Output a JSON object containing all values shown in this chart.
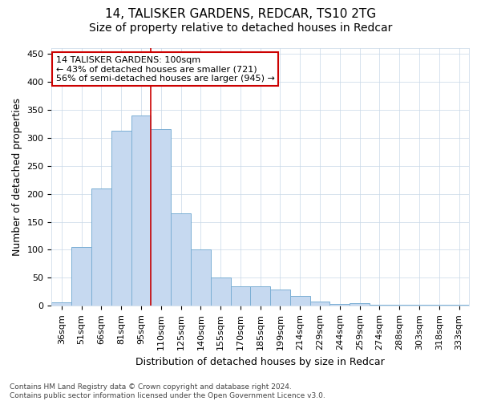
{
  "title1": "14, TALISKER GARDENS, REDCAR, TS10 2TG",
  "title2": "Size of property relative to detached houses in Redcar",
  "xlabel": "Distribution of detached houses by size in Redcar",
  "ylabel": "Number of detached properties",
  "categories": [
    "36sqm",
    "51sqm",
    "66sqm",
    "81sqm",
    "95sqm",
    "110sqm",
    "125sqm",
    "140sqm",
    "155sqm",
    "170sqm",
    "185sqm",
    "199sqm",
    "214sqm",
    "229sqm",
    "244sqm",
    "259sqm",
    "274sqm",
    "288sqm",
    "303sqm",
    "318sqm",
    "333sqm"
  ],
  "values": [
    6,
    105,
    209,
    313,
    340,
    315,
    165,
    100,
    50,
    35,
    35,
    29,
    17,
    8,
    4,
    5,
    2,
    2,
    2,
    2,
    2
  ],
  "bar_color": "#c6d9f0",
  "bar_edge_color": "#7bafd4",
  "vline_x": 4.5,
  "vline_color": "#cc0000",
  "annotation_text": "14 TALISKER GARDENS: 100sqm\n← 43% of detached houses are smaller (721)\n56% of semi-detached houses are larger (945) →",
  "annotation_box_color": "#ffffff",
  "annotation_box_edge": "#cc0000",
  "ylim": [
    0,
    460
  ],
  "yticks": [
    0,
    50,
    100,
    150,
    200,
    250,
    300,
    350,
    400,
    450
  ],
  "footnote": "Contains HM Land Registry data © Crown copyright and database right 2024.\nContains public sector information licensed under the Open Government Licence v3.0.",
  "bg_color": "#ffffff",
  "grid_color": "#c8d8e8",
  "title_fontsize": 11,
  "subtitle_fontsize": 10,
  "tick_fontsize": 8,
  "ylabel_fontsize": 9,
  "xlabel_fontsize": 9,
  "footnote_fontsize": 6.5
}
